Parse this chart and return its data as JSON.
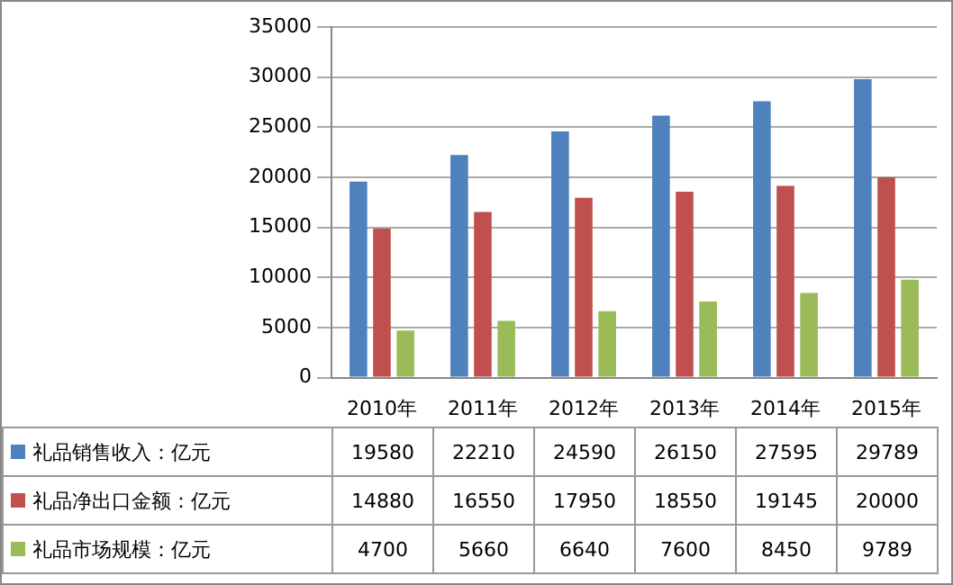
{
  "chart_data": {
    "type": "bar",
    "categories": [
      "2010年",
      "2011年",
      "2012年",
      "2013年",
      "2014年",
      "2015年"
    ],
    "series": [
      {
        "name": "礼品销售收入：亿元",
        "color": "#4f81bd",
        "values": [
          19580,
          22210,
          24590,
          26150,
          27595,
          29789
        ]
      },
      {
        "name": "礼品净出口金额：亿元",
        "color": "#c0504d",
        "values": [
          14880,
          16550,
          17950,
          18550,
          19145,
          20000
        ]
      },
      {
        "name": "礼品市场规模：亿元",
        "color": "#9bbb59",
        "values": [
          4700,
          5660,
          6640,
          7600,
          8450,
          9789
        ]
      }
    ],
    "ylim": [
      0,
      35000
    ],
    "yticks": [
      0,
      5000,
      10000,
      15000,
      20000,
      25000,
      30000,
      35000
    ],
    "grid": "y",
    "data_labels": true,
    "legend": "bottom"
  }
}
